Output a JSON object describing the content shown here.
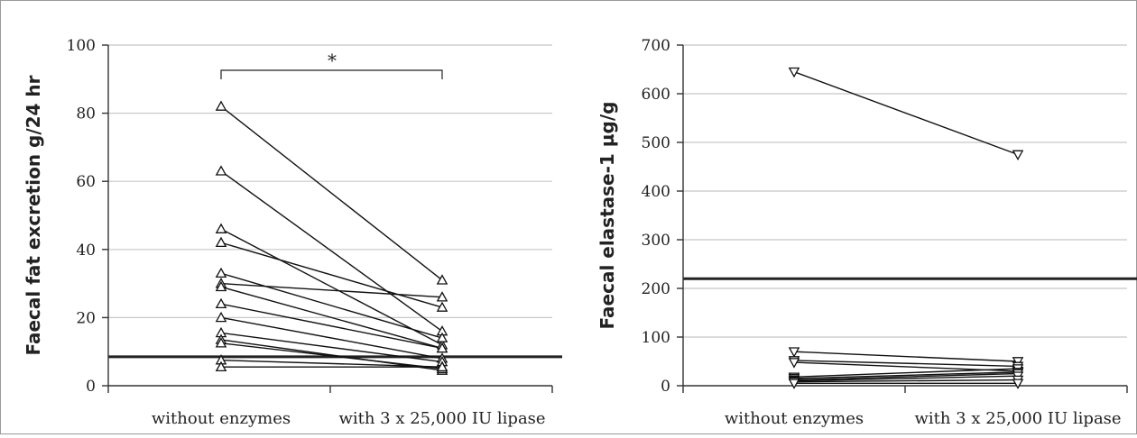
{
  "chart_data": [
    {
      "type": "line",
      "ylabel": "Faecal fat excretion g/24 hr",
      "xlabel": "",
      "categories": [
        "without enzymes",
        "with 3 x 25,000 IU lipase"
      ],
      "ylim": [
        0,
        100
      ],
      "yticks": [
        "0",
        "20",
        "40",
        "60",
        "80",
        "100"
      ],
      "grid": true,
      "reference_line": 8.5,
      "marker": "triangle-up",
      "significance": "*",
      "pairs": [
        [
          82,
          31
        ],
        [
          63,
          16
        ],
        [
          46,
          12
        ],
        [
          42,
          23
        ],
        [
          33,
          14
        ],
        [
          30,
          26
        ],
        [
          29,
          11
        ],
        [
          24,
          11
        ],
        [
          20,
          8
        ],
        [
          15.5,
          7
        ],
        [
          13.5,
          4.5
        ],
        [
          12.5,
          5
        ],
        [
          7.5,
          5.5
        ],
        [
          5.5,
          5.5
        ]
      ]
    },
    {
      "type": "line",
      "ylabel": "Faecal elastase-1 µg/g",
      "xlabel": "",
      "categories": [
        "without enzymes",
        "with 3 x 25,000 IU lipase"
      ],
      "ylim": [
        0,
        700
      ],
      "yticks": [
        "0",
        "100",
        "200",
        "300",
        "400",
        "500",
        "600",
        "700"
      ],
      "grid": true,
      "reference_line": 220,
      "marker": "triangle-down",
      "pairs": [
        [
          645,
          475
        ],
        [
          70,
          50
        ],
        [
          52,
          40
        ],
        [
          48,
          30
        ],
        [
          18,
          35
        ],
        [
          15,
          28
        ],
        [
          12,
          25
        ],
        [
          10,
          20
        ],
        [
          8,
          12
        ],
        [
          5,
          5
        ]
      ]
    }
  ]
}
